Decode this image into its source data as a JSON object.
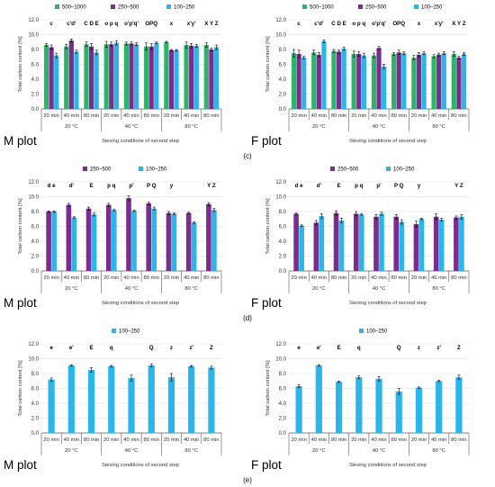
{
  "colors": {
    "s500_1000": "#2DB36B",
    "s250_500": "#7B2D8E",
    "s100_250": "#2BB5EA",
    "grid": "#D9D9D9",
    "axis": "#595959",
    "error": "#000000"
  },
  "common": {
    "ylabel": "Total carbon content [%]",
    "xlabel": "Sieving conditions of second step",
    "times": [
      "20 min",
      "40 min",
      "80 min"
    ],
    "temps": [
      "20 °C",
      "40 °C",
      "80 °C"
    ],
    "yticks": [
      "0.0",
      "2.0",
      "4.0",
      "6.0",
      "8.0",
      "10.0",
      "12.0"
    ]
  },
  "panel_labels": [
    "(c)",
    "(d)",
    "(e)"
  ],
  "chart_data": [
    {
      "type": "bar",
      "plot_label": "M plot",
      "row": 0,
      "col": 0,
      "ylim": [
        0,
        12
      ],
      "legend": [
        "500–1000",
        "250–500",
        "100–250"
      ],
      "group_labels": [
        "c",
        "c'd'",
        "C D E",
        "o p q",
        "o'p'q'",
        "OPQ",
        "x",
        "x'y'",
        "X Y Z"
      ],
      "series": [
        {
          "name": "500–1000",
          "color_key": "s500_1000",
          "values": [
            8.6,
            8.4,
            8.7,
            8.7,
            8.8,
            8.4,
            9.0,
            8.6,
            8.6
          ],
          "errors": [
            0.2,
            0.3,
            0.3,
            0.4,
            0.2,
            0.5,
            0.1,
            0.4,
            0.3
          ]
        },
        {
          "name": "250–500",
          "color_key": "s250_500",
          "values": [
            8.3,
            9.2,
            8.4,
            8.7,
            8.8,
            8.4,
            7.9,
            8.5,
            8.0
          ],
          "errors": [
            0.3,
            0.2,
            0.4,
            0.3,
            0.2,
            0.4,
            0.1,
            0.3,
            0.2
          ]
        },
        {
          "name": "100–250",
          "color_key": "s100_250",
          "values": [
            7.2,
            7.7,
            7.6,
            8.9,
            8.7,
            8.9,
            7.9,
            8.5,
            8.3
          ],
          "errors": [
            0.3,
            0.2,
            0.3,
            0.3,
            0.2,
            0.1,
            0.1,
            0.2,
            0.3
          ]
        }
      ]
    },
    {
      "type": "bar",
      "plot_label": "F plot",
      "row": 0,
      "col": 1,
      "ylim": [
        0,
        12
      ],
      "legend": [
        "500–1000",
        "250–500",
        "100–250"
      ],
      "group_labels": [
        "c",
        "c'd'",
        "C D E",
        "o p q",
        "o'p'q'",
        "OPQ",
        "x",
        "x'y'",
        "X Y Z"
      ],
      "series": [
        {
          "name": "500–1000",
          "color_key": "s500_1000",
          "values": [
            7.5,
            7.6,
            7.8,
            7.4,
            7.2,
            7.4,
            6.9,
            7.1,
            7.4
          ],
          "errors": [
            0.5,
            0.3,
            0.2,
            0.4,
            0.3,
            0.2,
            0.3,
            0.2,
            0.3
          ]
        },
        {
          "name": "250–500",
          "color_key": "s250_500",
          "values": [
            7.4,
            7.3,
            7.7,
            7.4,
            8.2,
            7.6,
            7.3,
            7.3,
            6.9
          ],
          "errors": [
            0.5,
            0.3,
            0.2,
            0.3,
            0.2,
            0.3,
            0.3,
            0.2,
            0.2
          ]
        },
        {
          "name": "100–250",
          "color_key": "s100_250",
          "values": [
            6.9,
            9.1,
            8.1,
            7.2,
            5.7,
            7.5,
            7.5,
            7.5,
            7.4
          ],
          "errors": [
            0.2,
            0.2,
            0.2,
            0.3,
            0.3,
            0.2,
            0.2,
            0.2,
            0.2
          ]
        }
      ]
    },
    {
      "type": "bar",
      "plot_label": "M plot",
      "row": 1,
      "col": 0,
      "ylim": [
        0,
        12
      ],
      "legend": [
        "250–500",
        "100–250"
      ],
      "group_labels": [
        "d e",
        "d'",
        "E",
        "p q",
        "p'",
        "P Q",
        "y",
        "",
        "Y Z"
      ],
      "series": [
        {
          "name": "250–500",
          "color_key": "s250_500",
          "values": [
            8.0,
            8.9,
            8.4,
            8.9,
            9.8,
            9.1,
            7.8,
            7.8,
            9.0
          ],
          "errors": [
            0.1,
            0.2,
            0.2,
            0.2,
            0.3,
            0.2,
            0.2,
            0.1,
            0.2
          ]
        },
        {
          "name": "100–250",
          "color_key": "s100_250",
          "values": [
            8.0,
            7.2,
            7.6,
            8.2,
            8.1,
            8.4,
            7.7,
            6.5,
            8.2
          ],
          "errors": [
            0.1,
            0.1,
            0.2,
            0.1,
            0.1,
            0.2,
            0.1,
            0.1,
            0.2
          ]
        }
      ]
    },
    {
      "type": "bar",
      "plot_label": "F plot",
      "row": 1,
      "col": 1,
      "ylim": [
        0,
        12
      ],
      "legend": [
        "250–500",
        "100–250"
      ],
      "group_labels": [
        "d e",
        "d'",
        "E",
        "p q",
        "p'",
        "P Q",
        "y",
        "",
        "Y Z"
      ],
      "series": [
        {
          "name": "250–500",
          "color_key": "s250_500",
          "values": [
            7.7,
            6.5,
            7.8,
            7.7,
            7.3,
            7.3,
            6.3,
            7.3,
            7.2
          ],
          "errors": [
            0.1,
            0.3,
            0.3,
            0.3,
            0.3,
            0.3,
            0.4,
            0.4,
            0.2
          ]
        },
        {
          "name": "100–250",
          "color_key": "s100_250",
          "values": [
            6.1,
            7.4,
            6.8,
            7.6,
            7.7,
            6.6,
            7.0,
            6.9,
            7.3
          ],
          "errors": [
            0.1,
            0.3,
            0.3,
            0.1,
            0.2,
            0.3,
            0.1,
            0.2,
            0.3
          ]
        }
      ]
    },
    {
      "type": "bar",
      "plot_label": "M plot",
      "row": 2,
      "col": 0,
      "ylim": [
        0,
        12
      ],
      "legend": [
        "100–250"
      ],
      "group_labels": [
        "e",
        "e'",
        "E",
        "q",
        "",
        "Q",
        "z",
        "z'",
        "Z"
      ],
      "series": [
        {
          "name": "100–250",
          "color_key": "s100_250",
          "values": [
            7.2,
            9.1,
            8.5,
            9.0,
            7.4,
            9.1,
            7.5,
            9.0,
            8.8
          ],
          "errors": [
            0.2,
            0.1,
            0.3,
            0.1,
            0.4,
            0.2,
            0.5,
            0.1,
            0.2
          ]
        }
      ]
    },
    {
      "type": "bar",
      "plot_label": "F plot",
      "row": 2,
      "col": 1,
      "ylim": [
        0,
        12
      ],
      "legend": [
        "100–250"
      ],
      "group_labels": [
        "e",
        "e'",
        "E",
        "q",
        "",
        "Q",
        "z",
        "z'",
        "Z"
      ],
      "series": [
        {
          "name": "100–250",
          "color_key": "s100_250",
          "values": [
            6.3,
            9.1,
            6.9,
            7.5,
            7.3,
            5.6,
            6.1,
            7.0,
            7.5
          ],
          "errors": [
            0.2,
            0.1,
            0.1,
            0.2,
            0.3,
            0.4,
            0.1,
            0.1,
            0.3
          ]
        }
      ]
    }
  ]
}
